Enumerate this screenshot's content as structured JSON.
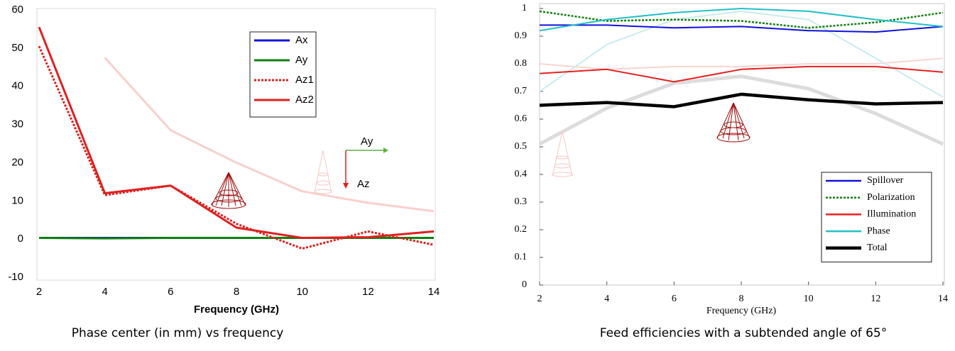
{
  "chart_data": [
    {
      "type": "line",
      "title": "Phase center (in mm) vs frequency",
      "x_label": "Frequency (GHz)",
      "x": [
        2,
        4,
        6,
        8,
        10,
        12,
        14
      ],
      "xlim": [
        2,
        14
      ],
      "xticks": [
        2,
        4,
        6,
        8,
        10,
        12,
        14
      ],
      "ylim": [
        -10,
        60
      ],
      "yticks": [
        -10,
        0,
        10,
        20,
        30,
        40,
        50,
        60
      ],
      "grid": false,
      "legend": "upper right",
      "annotations": [
        "Ay",
        "Az"
      ],
      "series": [
        {
          "color": "#f8d0cc",
          "values": [
            null,
            47.5,
            28.5,
            20,
            12.5,
            9.5,
            7.3
          ]
        },
        {
          "name": "Ax",
          "color": "#1010e0",
          "values": [
            0.3,
            0.3,
            0.3,
            0.3,
            0.3,
            0.3,
            0.3
          ]
        },
        {
          "name": "Ay",
          "color": "#108010",
          "values": [
            0.3,
            0.2,
            0.3,
            0.3,
            0.3,
            0.3,
            0.3
          ]
        },
        {
          "name": "Az1",
          "color": "#e02020",
          "dashed": true,
          "values": [
            50.5,
            11.5,
            14,
            4,
            -2.5,
            2,
            -1.5
          ]
        },
        {
          "name": "Az2",
          "color": "#e02020",
          "values": [
            55.5,
            12,
            14,
            3,
            0.3,
            0.5,
            2
          ]
        }
      ]
    },
    {
      "type": "line",
      "title": "Feed efficiencies with a subtended angle of 65°",
      "x_label": "Frequency (GHz)",
      "x": [
        2,
        4,
        6,
        8,
        10,
        12,
        14
      ],
      "xlim": [
        2,
        14
      ],
      "xticks": [
        2,
        4,
        6,
        8,
        10,
        12,
        14
      ],
      "ylim": [
        0,
        1
      ],
      "yticks": [
        0,
        0.1,
        0.2,
        0.3,
        0.4,
        0.5,
        0.6,
        0.7,
        0.8,
        0.9,
        1
      ],
      "grid": false,
      "legend": "lower right",
      "series": [
        {
          "color": "#dcdcdc",
          "values": [
            0.51,
            0.64,
            0.73,
            0.755,
            0.71,
            0.62,
            0.51
          ]
        },
        {
          "color": "#fad4d0",
          "values": [
            0.8,
            0.78,
            0.79,
            0.79,
            0.8,
            0.8,
            0.82
          ]
        },
        {
          "color": "#c8ecf0",
          "values": [
            0.7,
            0.87,
            0.96,
            0.99,
            0.96,
            0.82,
            0.68
          ]
        },
        {
          "name": "Spillover",
          "color": "#1010e0",
          "values": [
            0.94,
            0.94,
            0.93,
            0.935,
            0.92,
            0.915,
            0.935
          ]
        },
        {
          "name": "Polarization",
          "color": "#108010",
          "dashed": true,
          "values": [
            0.99,
            0.955,
            0.96,
            0.955,
            0.93,
            0.95,
            0.985
          ]
        },
        {
          "name": "Illumination",
          "color": "#e82020",
          "values": [
            0.765,
            0.78,
            0.735,
            0.78,
            0.79,
            0.79,
            0.77
          ]
        },
        {
          "name": "Phase",
          "color": "#20c0c8",
          "values": [
            0.92,
            0.96,
            0.985,
            1.0,
            0.99,
            0.96,
            0.935
          ]
        },
        {
          "name": "Total",
          "color": "#000000",
          "values": [
            0.65,
            0.66,
            0.645,
            0.69,
            0.67,
            0.655,
            0.66
          ]
        }
      ]
    }
  ]
}
